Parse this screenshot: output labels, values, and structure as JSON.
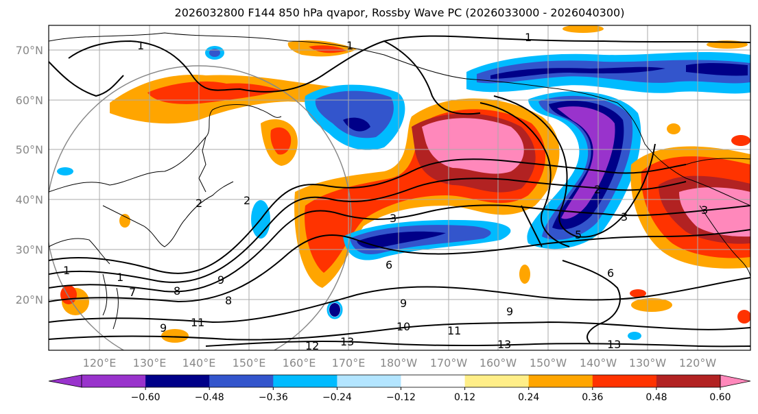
{
  "title": "2026032800 F144 850 hPa qvapor, Rossby Wave PC (2026033000 - 2026040300)",
  "lat_labels": [
    "70°N",
    "60°N",
    "50°N",
    "40°N",
    "30°N",
    "20°N"
  ],
  "lon_labels": [
    "120°E",
    "130°E",
    "140°E",
    "150°E",
    "160°E",
    "170°E",
    "180°W",
    "170°W",
    "160°W",
    "150°W",
    "140°W",
    "130°W",
    "120°W"
  ],
  "colorbar": {
    "colors": [
      "#9933cc",
      "#000088",
      "#3355cc",
      "#00bbff",
      "#b3e5ff",
      "#ffffff",
      "#ffee88",
      "#ffa500",
      "#ff3300",
      "#b22222",
      "#ff88bb"
    ],
    "tick_labels": [
      "−0.60",
      "−0.48",
      "−0.36",
      "−0.24",
      "−0.12",
      "0.12",
      "0.24",
      "0.36",
      "0.48",
      "0.60"
    ]
  },
  "contour_labels": [
    "1",
    "1",
    "1",
    "1",
    "1",
    "2",
    "2",
    "2",
    "3",
    "3",
    "3",
    "5",
    "6",
    "6",
    "8",
    "8",
    "9",
    "9",
    "9",
    "9",
    "10",
    "11",
    "11",
    "12",
    "13",
    "13",
    "13",
    "7"
  ]
}
